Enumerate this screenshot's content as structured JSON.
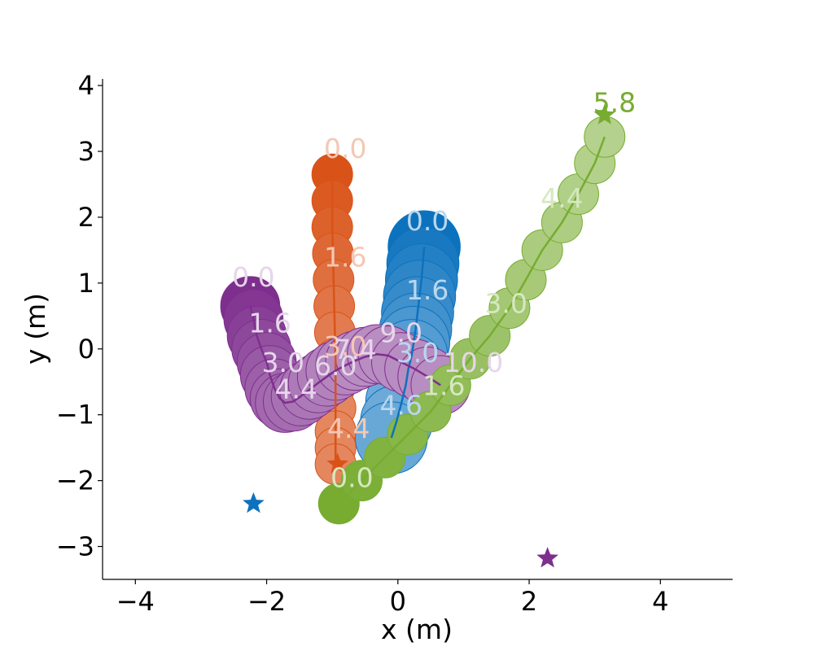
{
  "chart_data": {
    "type": "scatter",
    "title": "",
    "xlabel": "x (m)",
    "ylabel": "y (m)",
    "xlim": [
      -4.5,
      5.1
    ],
    "ylim": [
      -3.5,
      4.1
    ],
    "xticks": [
      -4,
      -2,
      0,
      2,
      4
    ],
    "yticks": [
      -3,
      -2,
      -1,
      0,
      1,
      2,
      3,
      4
    ],
    "xtick_labels": [
      "−4",
      "−2",
      "0",
      "2",
      "4"
    ],
    "ytick_labels": [
      "−3",
      "−2",
      "−1",
      "0",
      "1",
      "2",
      "3",
      "4"
    ],
    "grid": false,
    "legend": "none",
    "series": [
      {
        "color": "#0c72be",
        "light_color": "#b9d7ee",
        "radius_m": 0.55,
        "x": [
          0.4,
          0.38,
          0.36,
          0.33,
          0.3,
          0.27,
          0.24,
          0.21,
          0.16,
          0.12,
          0.06,
          -0.02,
          -0.1
        ],
        "y": [
          1.55,
          1.3,
          1.05,
          0.8,
          0.55,
          0.3,
          0.1,
          -0.1,
          -0.3,
          -0.55,
          -0.8,
          -1.1,
          -1.35
        ],
        "alpha": [
          1.0,
          0.95,
          0.9,
          0.86,
          0.82,
          0.78,
          0.74,
          0.7,
          0.66,
          0.62,
          0.6,
          0.6,
          0.62
        ],
        "time_labels": [
          {
            "text": "0.0",
            "x": 0.45,
            "y": 1.8
          },
          {
            "text": "1.6",
            "x": 0.45,
            "y": 0.75
          },
          {
            "text": "3.0",
            "x": 0.3,
            "y": -0.2
          },
          {
            "text": "4.6",
            "x": 0.05,
            "y": -1.0
          }
        ],
        "goal": {
          "x": -2.2,
          "y": -2.35
        }
      },
      {
        "color": "#d95319",
        "light_color": "#f4c8b5",
        "radius_m": 0.31,
        "x": [
          -1.0,
          -1.0,
          -1.0,
          -0.99,
          -0.98,
          -0.97,
          -0.96,
          -0.95,
          -0.95,
          -0.95,
          -0.95,
          -0.95,
          -0.95
        ],
        "y": [
          2.65,
          2.25,
          1.85,
          1.45,
          1.05,
          0.65,
          0.25,
          -0.15,
          -0.55,
          -0.9,
          -1.25,
          -1.5,
          -1.75
        ],
        "alpha": [
          1.0,
          0.96,
          0.92,
          0.88,
          0.84,
          0.8,
          0.76,
          0.74,
          0.72,
          0.7,
          0.7,
          0.7,
          0.7
        ],
        "time_labels": [
          {
            "text": "0.0",
            "x": -0.8,
            "y": 2.9
          },
          {
            "text": "1.6",
            "x": -0.8,
            "y": 1.25
          },
          {
            "text": "3.0",
            "x": -0.8,
            "y": -0.1
          },
          {
            "text": "4.4",
            "x": -0.75,
            "y": -1.35
          }
        ],
        "goal": {
          "x": -0.92,
          "y": -1.75
        }
      },
      {
        "color": "#7e2f8e",
        "light_color": "#e6d6ea",
        "radius_m": 0.45,
        "x": [
          -2.25,
          -2.2,
          -2.15,
          -2.08,
          -2.0,
          -1.95,
          -1.88,
          -1.8,
          -1.72,
          -1.6,
          -1.48,
          -1.35,
          -1.22,
          -1.08,
          -0.95,
          -0.8,
          -0.65,
          -0.5,
          -0.32,
          -0.15,
          0.05,
          0.25,
          0.45,
          0.65
        ],
        "y": [
          0.65,
          0.45,
          0.2,
          0.0,
          -0.2,
          -0.4,
          -0.6,
          -0.75,
          -0.82,
          -0.8,
          -0.72,
          -0.62,
          -0.52,
          -0.42,
          -0.33,
          -0.25,
          -0.18,
          -0.12,
          -0.08,
          -0.1,
          -0.2,
          -0.3,
          -0.42,
          -0.55
        ],
        "alpha": [
          1.0,
          0.96,
          0.92,
          0.88,
          0.84,
          0.8,
          0.77,
          0.74,
          0.72,
          0.7,
          0.68,
          0.66,
          0.64,
          0.62,
          0.6,
          0.58,
          0.56,
          0.55,
          0.55,
          0.55,
          0.55,
          0.55,
          0.55,
          0.55
        ],
        "time_labels": [
          {
            "text": "0.0",
            "x": -2.2,
            "y": 0.95
          },
          {
            "text": "1.6",
            "x": -1.95,
            "y": 0.25
          },
          {
            "text": "3.0",
            "x": -1.75,
            "y": -0.35
          },
          {
            "text": "4.4",
            "x": -1.55,
            "y": -0.75
          },
          {
            "text": "6.0",
            "x": -0.95,
            "y": -0.4
          },
          {
            "text": "7.4",
            "x": -0.65,
            "y": -0.15
          },
          {
            "text": "9.0",
            "x": 0.05,
            "y": 0.1
          },
          {
            "text": "10.0",
            "x": 1.15,
            "y": -0.35
          }
        ],
        "goal": {
          "x": 2.28,
          "y": -3.18
        }
      },
      {
        "color": "#77ac30",
        "light_color": "#d6e8c0",
        "radius_m": 0.31,
        "x": [
          -0.9,
          -0.55,
          -0.2,
          0.15,
          0.5,
          0.8,
          1.1,
          1.4,
          1.7,
          1.95,
          2.2,
          2.5,
          2.75,
          3.0,
          3.15
        ],
        "y": [
          -2.35,
          -2.0,
          -1.65,
          -1.3,
          -0.95,
          -0.55,
          -0.15,
          0.2,
          0.62,
          1.05,
          1.5,
          1.92,
          2.35,
          2.82,
          3.22
        ],
        "alpha": [
          1.0,
          0.96,
          0.92,
          0.88,
          0.84,
          0.8,
          0.76,
          0.72,
          0.68,
          0.65,
          0.62,
          0.6,
          0.58,
          0.56,
          0.55
        ],
        "time_labels": [
          {
            "text": "0.0",
            "x": -0.7,
            "y": -2.1
          },
          {
            "text": "1.6",
            "x": 0.7,
            "y": -0.7
          },
          {
            "text": "3.0",
            "x": 1.65,
            "y": 0.55
          },
          {
            "text": "4.4",
            "x": 2.5,
            "y": 2.15
          },
          {
            "text": "5.8",
            "x": 3.3,
            "y": 3.6
          }
        ],
        "goal": {
          "x": 3.15,
          "y": 3.55
        }
      }
    ]
  }
}
